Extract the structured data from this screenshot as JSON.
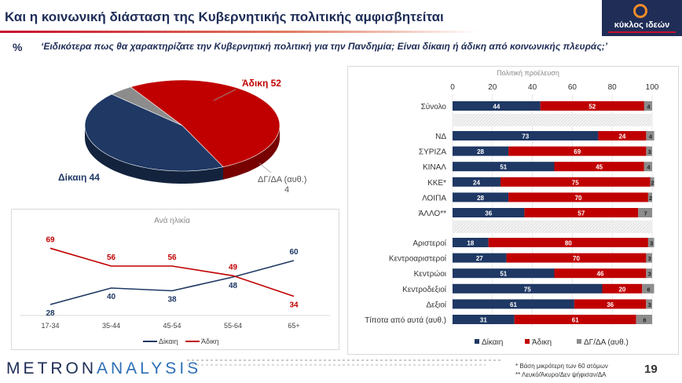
{
  "header": {
    "title": "Και η  κοινωνική διάσταση της Κυβερνητικής πολιτικής αμφισβητείται",
    "percent_mark": "%",
    "question": "‘Ειδικότερα πως θα χαρακτηρίζατε την Κυβερνητική πολιτική για την Πανδημία; Είναι δίκαιη ή άδικη από κοινωνικής πλευράς;’"
  },
  "logo": {
    "text": "κύκλος ιδεών"
  },
  "colors": {
    "navy": "#1f3864",
    "red": "#c00000",
    "gray": "#8c8c8c",
    "accent": "#1f2d57"
  },
  "chart_data": [
    {
      "type": "pie",
      "slices": [
        {
          "label": "Άδικη 52",
          "value": 52,
          "color": "#c00000"
        },
        {
          "label": "Δίκαιη 44",
          "value": 44,
          "color": "#1f3864"
        },
        {
          "label": "ΔΓ/ΔΑ (αυθ.)",
          "label2": "4",
          "value": 4,
          "color": "#8c8c8c"
        }
      ]
    },
    {
      "type": "line",
      "title": "Ανά ηλικία",
      "categories": [
        "17-34",
        "35-44",
        "45-54",
        "55-64",
        "65+"
      ],
      "series": [
        {
          "name": "Δίκαιη",
          "values": [
            28,
            40,
            38,
            48,
            60
          ],
          "color": "#1f3864"
        },
        {
          "name": "Άδικη",
          "values": [
            69,
            56,
            56,
            49,
            34
          ],
          "color": "#c00000"
        }
      ],
      "ylim": [
        0,
        80
      ],
      "legend": "bottom"
    },
    {
      "type": "bar",
      "orientation": "horizontal",
      "stacked": true,
      "title": "Πολιτική προέλευση",
      "xlim": [
        0,
        100
      ],
      "xticks": [
        "0",
        "20",
        "40",
        "60",
        "80",
        "100"
      ],
      "groups": [
        [
          "Σύνολο"
        ],
        [
          "ΝΔ",
          "ΣΥΡΙΖΑ",
          "ΚΙΝΑΛ",
          "ΚΚΕ*",
          "ΛΟΙΠΑ",
          "ΆΛΛΟ**"
        ],
        [
          "Αριστεροί",
          "Κεντροαριστεροί",
          "Κεντρώοι",
          "Κεντροδεξιοί",
          "Δεξιοί",
          "Τίποτα από αυτά (αυθ.)"
        ]
      ],
      "categories": [
        "Σύνολο",
        "ΝΔ",
        "ΣΥΡΙΖΑ",
        "ΚΙΝΑΛ",
        "ΚΚΕ*",
        "ΛΟΙΠΑ",
        "ΆΛΛΟ**",
        "Αριστεροί",
        "Κεντροαριστεροί",
        "Κεντρώοι",
        "Κεντροδεξιοί",
        "Δεξιοί",
        "Τίποτα από αυτά (αυθ.)"
      ],
      "series": [
        {
          "name": "Δίκαιη",
          "values": [
            44,
            73,
            28,
            51,
            24,
            28,
            36,
            18,
            27,
            51,
            75,
            61,
            31
          ],
          "color": "#1f3864"
        },
        {
          "name": "Άδικη",
          "values": [
            52,
            24,
            69,
            45,
            75,
            70,
            57,
            80,
            70,
            46,
            20,
            36,
            61
          ],
          "color": "#c00000"
        },
        {
          "name": "ΔΓ/ΔΑ (αυθ.)",
          "values": [
            4,
            4,
            3,
            4,
            2,
            2,
            7,
            3,
            3,
            3,
            6,
            3,
            8
          ],
          "color": "#8c8c8c"
        }
      ],
      "legend": "bottom"
    }
  ],
  "footer": {
    "brand_a": "METRON",
    "brand_b": "ANALYSIS",
    "note1": "*  Βάση μικρότερη των 60 ατόμων",
    "note2": "** Λευκό/Άκυρο/Δεν ψήφισαν/ΔΑ",
    "page": "19"
  }
}
